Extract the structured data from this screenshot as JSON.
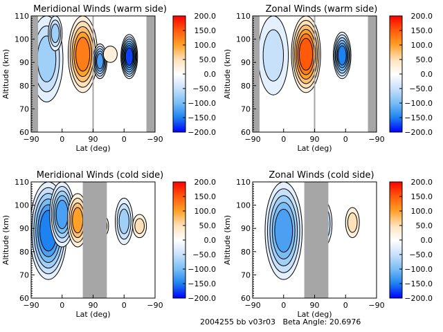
{
  "footer": {
    "id_text": "2004255 bb v03r03",
    "beta_label": "Beta Angle:",
    "beta_value": "20.6976"
  },
  "chart_data": [
    {
      "type": "heatmap",
      "title": "Meridional Winds (warm side)",
      "xlabel": "Lat (deg)",
      "ylabel": "Altitude (km)",
      "x_tick_labels": [
        "-90",
        "0",
        "90",
        "0",
        "-90"
      ],
      "y_tick_labels": [
        "60",
        "70",
        "80",
        "90",
        "100",
        "110"
      ],
      "ylim": [
        60,
        110
      ],
      "x_range_note": "two adjoined latitude sweeps: -90→90 then 90→-90",
      "colorbar": {
        "min": -200.0,
        "max": 200.0,
        "tick_labels": [
          "200.0",
          "150.0",
          "100.0",
          "50.0",
          "0.0",
          "-50.0",
          "-100.0",
          "-150.0",
          "-200.0"
        ]
      },
      "no_data_bands": [
        [
          -90,
          -70
        ],
        [
          88,
          92
        ],
        [
          -65,
          -90
        ]
      ],
      "features": [
        {
          "sign": "negative",
          "lat_sweep": 1,
          "lat_center": -45,
          "alt_range": [
            73,
            110
          ],
          "peak": -60
        },
        {
          "sign": "negative",
          "lat_sweep": 1,
          "lat_center": -20,
          "alt_range": [
            95,
            110
          ],
          "peak": -75
        },
        {
          "sign": "positive",
          "lat_sweep": 1,
          "lat_center": 60,
          "alt_range": [
            77,
            110
          ],
          "peak": 120
        },
        {
          "sign": "negative",
          "lat_sweep": 2,
          "lat_center": 70,
          "alt_range": [
            83,
            98
          ],
          "peak": -110
        },
        {
          "sign": "positive",
          "lat_sweep": 2,
          "lat_center": 40,
          "alt_range": [
            90,
            97
          ],
          "peak": 20
        },
        {
          "sign": "negative",
          "lat_sweep": 2,
          "lat_center": -15,
          "alt_range": [
            83,
            102
          ],
          "peak": -160
        }
      ]
    },
    {
      "type": "heatmap",
      "title": "Zonal Winds (warm side)",
      "xlabel": "Lat (deg)",
      "ylabel": "Altitude (km)",
      "x_tick_labels": [
        "-90",
        "0",
        "90",
        "0",
        "-90"
      ],
      "y_tick_labels": [
        "60",
        "70",
        "80",
        "90",
        "100",
        "110"
      ],
      "ylim": [
        60,
        110
      ],
      "colorbar": {
        "min": -200.0,
        "max": 200.0,
        "tick_labels": [
          "200.0",
          "150.0",
          "100.0",
          "50.0",
          "0.0",
          "-50.0",
          "-100.0",
          "-150.0",
          "-200.0"
        ]
      },
      "no_data_bands": [
        [
          -90,
          -70
        ],
        [
          88,
          92
        ],
        [
          -65,
          -90
        ]
      ],
      "features": [
        {
          "sign": "negative",
          "lat_sweep": 1,
          "lat_center": -30,
          "alt_range": [
            76,
            110
          ],
          "peak": -45
        },
        {
          "sign": "positive",
          "lat_sweep": 1,
          "lat_center": 65,
          "alt_range": [
            77,
            110
          ],
          "peak": 130
        },
        {
          "sign": "negative",
          "lat_sweep": 2,
          "lat_center": 10,
          "alt_range": [
            83,
            103
          ],
          "peak": -140
        }
      ]
    },
    {
      "type": "heatmap",
      "title": "Meridional Winds (cold side)",
      "xlabel": "Lat (deg)",
      "ylabel": "Altitude (km)",
      "x_tick_labels": [
        "-90",
        "0",
        "90",
        "0",
        "-90"
      ],
      "y_tick_labels": [
        "60",
        "70",
        "80",
        "90",
        "100",
        "110"
      ],
      "ylim": [
        60,
        110
      ],
      "colorbar": {
        "min": -200.0,
        "max": 200.0,
        "tick_labels": [
          "200.0",
          "150.0",
          "100.0",
          "50.0",
          "0.0",
          "-50.0",
          "-100.0",
          "-150.0",
          "-200.0"
        ]
      },
      "no_data_bands": [
        [
          60,
          130
        ]
      ],
      "features": [
        {
          "sign": "negative",
          "lat_sweep": 1,
          "lat_center": -40,
          "alt_range": [
            68,
            110
          ],
          "peak": -140
        },
        {
          "sign": "negative",
          "lat_sweep": 1,
          "lat_center": 0,
          "alt_range": [
            82,
            110
          ],
          "peak": -110
        },
        {
          "sign": "positive",
          "lat_sweep": 1,
          "lat_center": 45,
          "alt_range": [
            82,
            105
          ],
          "peak": 80
        },
        {
          "sign": "positive",
          "lat_sweep": 2,
          "lat_center": 65,
          "alt_range": [
            86,
            96
          ],
          "peak": 60
        },
        {
          "sign": "negative",
          "lat_sweep": 2,
          "lat_center": 0,
          "alt_range": [
            83,
            103
          ],
          "peak": -70
        },
        {
          "sign": "positive",
          "lat_sweep": 2,
          "lat_center": -45,
          "alt_range": [
            86,
            96
          ],
          "peak": 40
        }
      ]
    },
    {
      "type": "heatmap",
      "title": "Zonal Winds (cold side)",
      "xlabel": "Lat (deg)",
      "ylabel": "Altitude (km)",
      "x_tick_labels": [
        "-90",
        "0",
        "90",
        "0",
        "-90"
      ],
      "y_tick_labels": [
        "60",
        "70",
        "80",
        "90",
        "100",
        "110"
      ],
      "ylim": [
        60,
        110
      ],
      "colorbar": {
        "min": -200.0,
        "max": 200.0,
        "tick_labels": [
          "200.0",
          "150.0",
          "100.0",
          "50.0",
          "0.0",
          "-50.0",
          "-100.0",
          "-150.0",
          "-200.0"
        ]
      },
      "no_data_bands": [
        [
          60,
          130
        ]
      ],
      "features": [
        {
          "sign": "negative",
          "lat_sweep": 1,
          "lat_center": 0,
          "alt_range": [
            68,
            110
          ],
          "peak": -110
        },
        {
          "sign": "negative",
          "lat_sweep": 2,
          "lat_center": 65,
          "alt_range": [
            82,
            102
          ],
          "peak": -60
        },
        {
          "sign": "positive",
          "lat_sweep": 2,
          "lat_center": -20,
          "alt_range": [
            86,
            99
          ],
          "peak": 30
        }
      ]
    }
  ]
}
